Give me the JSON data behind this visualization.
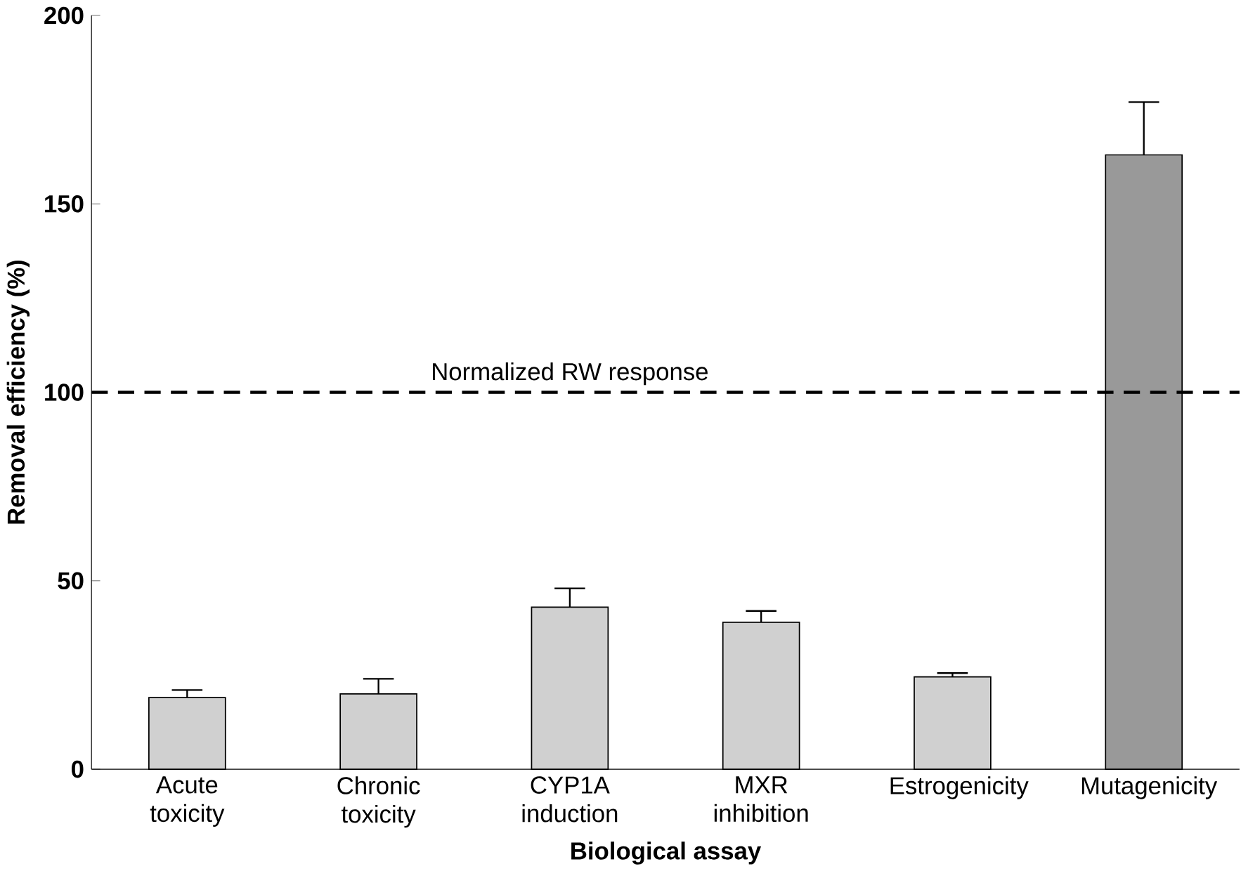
{
  "chart_data": {
    "type": "bar",
    "xlabel": "Biological assay",
    "ylabel": "Removal efficiency (%)",
    "categories": [
      "Acute toxicity",
      "Chronic toxicity",
      "CYP1A induction",
      "MXR inhibition",
      "Estrogenicity",
      "Mutagenicity"
    ],
    "values": [
      19,
      20,
      43,
      39,
      24.5,
      163
    ],
    "colors": [
      "#d0d0d0",
      "#d0d0d0",
      "#d0d0d0",
      "#d0d0d0",
      "#d0d0d0",
      "#999999"
    ],
    "errors": [
      2,
      4,
      5,
      3,
      1,
      14
    ],
    "ylim": [
      0,
      200
    ],
    "yticks": [
      0,
      50,
      100,
      150,
      200
    ],
    "ref_lines": [
      {
        "axis": "y",
        "value": 100,
        "label": "Normalized RW response",
        "line_style": "dashed"
      }
    ],
    "grid": false
  }
}
